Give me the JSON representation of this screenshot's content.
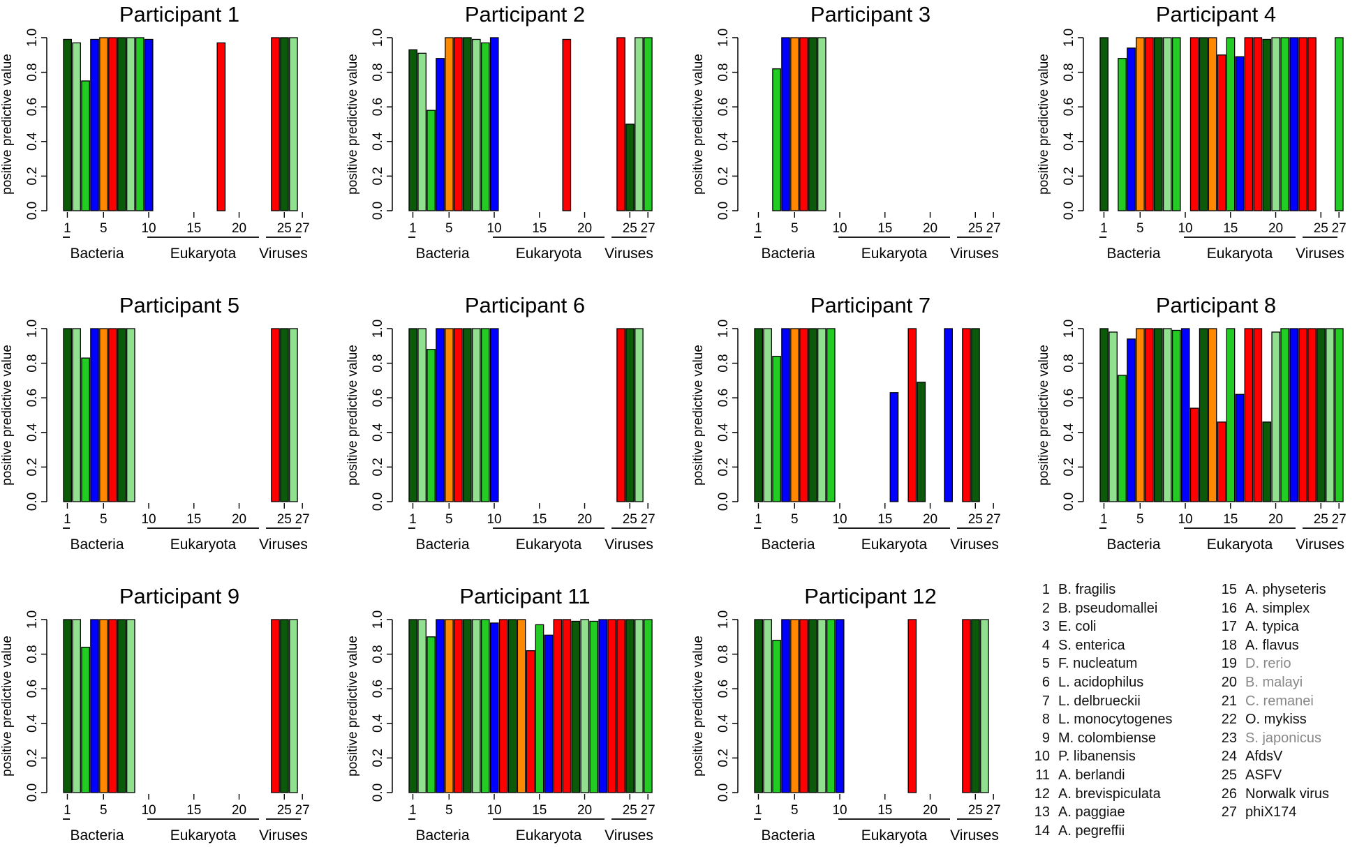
{
  "figure": {
    "y_axis_label": "positive predictive value",
    "y_ticks": [
      "0.0",
      "0.2",
      "0.4",
      "0.6",
      "0.8",
      "1.0"
    ],
    "x_ticks": [
      "1",
      "5",
      "10",
      "15",
      "20",
      "25",
      "27"
    ],
    "groups": [
      "Bacteria",
      "Eukaryota",
      "Viruses"
    ]
  },
  "colors": {
    "dark_green": "#0a5a0a",
    "light_green": "#90e090",
    "green": "#22cc22",
    "blue": "#0000ff",
    "orange": "#ff8800",
    "red": "#ff0000"
  },
  "species_colors": [
    "dark_green",
    "light_green",
    "green",
    "blue",
    "orange",
    "red",
    "dark_green",
    "light_green",
    "green",
    "blue",
    "red",
    "dark_green",
    "orange",
    "red",
    "green",
    "blue",
    "red",
    "red",
    "dark_green",
    "light_green",
    "green",
    "blue",
    "red",
    "red",
    "dark_green",
    "light_green",
    "green"
  ],
  "chart_data": [
    {
      "type": "bar",
      "title": "Participant 1",
      "categories": [
        1,
        2,
        3,
        4,
        5,
        6,
        7,
        8,
        9,
        10,
        11,
        12,
        13,
        14,
        15,
        16,
        17,
        18,
        19,
        20,
        21,
        22,
        23,
        24,
        25,
        26,
        27
      ],
      "ylim": [
        0,
        1
      ],
      "ylabel": "positive predictive value",
      "values": [
        0.99,
        0.97,
        0.75,
        0.99,
        1.0,
        1.0,
        1.0,
        1.0,
        1.0,
        0.99,
        null,
        null,
        null,
        null,
        null,
        null,
        null,
        0.97,
        null,
        null,
        null,
        null,
        null,
        1.0,
        1.0,
        1.0,
        null
      ]
    },
    {
      "type": "bar",
      "title": "Participant 2",
      "categories": [
        1,
        2,
        3,
        4,
        5,
        6,
        7,
        8,
        9,
        10,
        11,
        12,
        13,
        14,
        15,
        16,
        17,
        18,
        19,
        20,
        21,
        22,
        23,
        24,
        25,
        26,
        27
      ],
      "ylim": [
        0,
        1
      ],
      "ylabel": "positive predictive value",
      "values": [
        0.93,
        0.91,
        0.58,
        0.88,
        1.0,
        1.0,
        1.0,
        0.99,
        0.97,
        1.0,
        null,
        null,
        null,
        null,
        null,
        null,
        null,
        0.99,
        null,
        null,
        null,
        null,
        null,
        1.0,
        0.5,
        1.0,
        1.0
      ]
    },
    {
      "type": "bar",
      "title": "Participant 3",
      "categories": [
        1,
        2,
        3,
        4,
        5,
        6,
        7,
        8,
        9,
        10,
        11,
        12,
        13,
        14,
        15,
        16,
        17,
        18,
        19,
        20,
        21,
        22,
        23,
        24,
        25,
        26,
        27
      ],
      "ylim": [
        0,
        1
      ],
      "ylabel": "positive predictive value",
      "values": [
        null,
        null,
        0.82,
        1.0,
        1.0,
        1.0,
        1.0,
        1.0,
        null,
        null,
        null,
        null,
        null,
        null,
        null,
        null,
        null,
        null,
        null,
        null,
        null,
        null,
        null,
        null,
        null,
        null,
        null
      ]
    },
    {
      "type": "bar",
      "title": "Participant 4",
      "categories": [
        1,
        2,
        3,
        4,
        5,
        6,
        7,
        8,
        9,
        10,
        11,
        12,
        13,
        14,
        15,
        16,
        17,
        18,
        19,
        20,
        21,
        22,
        23,
        24,
        25,
        26,
        27
      ],
      "ylim": [
        0,
        1
      ],
      "ylabel": "positive predictive value",
      "values": [
        1.0,
        null,
        0.88,
        0.94,
        1.0,
        1.0,
        1.0,
        1.0,
        1.0,
        null,
        1.0,
        1.0,
        1.0,
        0.9,
        1.0,
        0.89,
        1.0,
        1.0,
        0.99,
        1.0,
        1.0,
        1.0,
        1.0,
        1.0,
        null,
        null,
        1.0
      ]
    },
    {
      "type": "bar",
      "title": "Participant 5",
      "categories": [
        1,
        2,
        3,
        4,
        5,
        6,
        7,
        8,
        9,
        10,
        11,
        12,
        13,
        14,
        15,
        16,
        17,
        18,
        19,
        20,
        21,
        22,
        23,
        24,
        25,
        26,
        27
      ],
      "ylim": [
        0,
        1
      ],
      "ylabel": "positive predictive value",
      "values": [
        1.0,
        1.0,
        0.83,
        1.0,
        1.0,
        1.0,
        1.0,
        1.0,
        null,
        null,
        null,
        null,
        null,
        null,
        null,
        null,
        null,
        null,
        null,
        null,
        null,
        null,
        null,
        1.0,
        1.0,
        1.0,
        null
      ]
    },
    {
      "type": "bar",
      "title": "Participant 6",
      "categories": [
        1,
        2,
        3,
        4,
        5,
        6,
        7,
        8,
        9,
        10,
        11,
        12,
        13,
        14,
        15,
        16,
        17,
        18,
        19,
        20,
        21,
        22,
        23,
        24,
        25,
        26,
        27
      ],
      "ylim": [
        0,
        1
      ],
      "ylabel": "positive predictive value",
      "values": [
        1.0,
        1.0,
        0.88,
        1.0,
        1.0,
        1.0,
        1.0,
        1.0,
        1.0,
        1.0,
        null,
        null,
        null,
        null,
        null,
        null,
        null,
        null,
        null,
        null,
        null,
        null,
        null,
        1.0,
        1.0,
        1.0,
        null
      ]
    },
    {
      "type": "bar",
      "title": "Participant 7",
      "categories": [
        1,
        2,
        3,
        4,
        5,
        6,
        7,
        8,
        9,
        10,
        11,
        12,
        13,
        14,
        15,
        16,
        17,
        18,
        19,
        20,
        21,
        22,
        23,
        24,
        25,
        26,
        27
      ],
      "ylim": [
        0,
        1
      ],
      "ylabel": "positive predictive value",
      "values": [
        1.0,
        1.0,
        0.84,
        1.0,
        1.0,
        1.0,
        1.0,
        1.0,
        1.0,
        null,
        null,
        null,
        null,
        null,
        null,
        0.63,
        null,
        1.0,
        0.69,
        null,
        null,
        1.0,
        null,
        1.0,
        1.0,
        null,
        null
      ]
    },
    {
      "type": "bar",
      "title": "Participant 8",
      "categories": [
        1,
        2,
        3,
        4,
        5,
        6,
        7,
        8,
        9,
        10,
        11,
        12,
        13,
        14,
        15,
        16,
        17,
        18,
        19,
        20,
        21,
        22,
        23,
        24,
        25,
        26,
        27
      ],
      "ylim": [
        0,
        1
      ],
      "ylabel": "positive predictive value",
      "values": [
        1.0,
        0.98,
        0.73,
        0.94,
        1.0,
        1.0,
        1.0,
        1.0,
        0.99,
        1.0,
        0.54,
        1.0,
        1.0,
        0.46,
        1.0,
        0.62,
        1.0,
        1.0,
        0.46,
        0.98,
        1.0,
        1.0,
        1.0,
        1.0,
        1.0,
        1.0,
        1.0
      ]
    },
    {
      "type": "bar",
      "title": "Participant 9",
      "categories": [
        1,
        2,
        3,
        4,
        5,
        6,
        7,
        8,
        9,
        10,
        11,
        12,
        13,
        14,
        15,
        16,
        17,
        18,
        19,
        20,
        21,
        22,
        23,
        24,
        25,
        26,
        27
      ],
      "ylim": [
        0,
        1
      ],
      "ylabel": "positive predictive value",
      "values": [
        1.0,
        1.0,
        0.84,
        1.0,
        1.0,
        1.0,
        1.0,
        1.0,
        null,
        null,
        null,
        null,
        null,
        null,
        null,
        null,
        null,
        null,
        null,
        null,
        null,
        null,
        null,
        1.0,
        1.0,
        1.0,
        null
      ]
    },
    {
      "type": "bar",
      "title": "Participant 11",
      "categories": [
        1,
        2,
        3,
        4,
        5,
        6,
        7,
        8,
        9,
        10,
        11,
        12,
        13,
        14,
        15,
        16,
        17,
        18,
        19,
        20,
        21,
        22,
        23,
        24,
        25,
        26,
        27
      ],
      "ylim": [
        0,
        1
      ],
      "ylabel": "positive predictive value",
      "values": [
        1.0,
        1.0,
        0.9,
        1.0,
        1.0,
        1.0,
        1.0,
        1.0,
        1.0,
        0.98,
        1.0,
        1.0,
        1.0,
        0.82,
        0.97,
        0.91,
        1.0,
        1.0,
        0.99,
        1.0,
        0.99,
        1.0,
        1.0,
        1.0,
        1.0,
        1.0,
        1.0
      ]
    },
    {
      "type": "bar",
      "title": "Participant 12",
      "categories": [
        1,
        2,
        3,
        4,
        5,
        6,
        7,
        8,
        9,
        10,
        11,
        12,
        13,
        14,
        15,
        16,
        17,
        18,
        19,
        20,
        21,
        22,
        23,
        24,
        25,
        26,
        27
      ],
      "ylim": [
        0,
        1
      ],
      "ylabel": "positive predictive value",
      "values": [
        1.0,
        1.0,
        0.88,
        1.0,
        1.0,
        1.0,
        1.0,
        1.0,
        1.0,
        1.0,
        null,
        null,
        null,
        null,
        null,
        null,
        null,
        1.0,
        null,
        null,
        null,
        null,
        null,
        1.0,
        1.0,
        1.0,
        null
      ]
    }
  ],
  "legend": [
    {
      "num": "1",
      "name": "B. fragilis",
      "grey": false
    },
    {
      "num": "2",
      "name": "B. pseudomallei",
      "grey": false
    },
    {
      "num": "3",
      "name": "E. coli",
      "grey": false
    },
    {
      "num": "4",
      "name": "S. enterica",
      "grey": false
    },
    {
      "num": "5",
      "name": "F. nucleatum",
      "grey": false
    },
    {
      "num": "6",
      "name": "L. acidophilus",
      "grey": false
    },
    {
      "num": "7",
      "name": "L. delbrueckii",
      "grey": false
    },
    {
      "num": "8",
      "name": "L. monocytogenes",
      "grey": false
    },
    {
      "num": "9",
      "name": "M. colombiense",
      "grey": false
    },
    {
      "num": "10",
      "name": "P. libanensis",
      "grey": false
    },
    {
      "num": "11",
      "name": "A. berlandi",
      "grey": false
    },
    {
      "num": "12",
      "name": "A. brevispiculata",
      "grey": false
    },
    {
      "num": "13",
      "name": "A. paggiae",
      "grey": false
    },
    {
      "num": "14",
      "name": "A. pegreffii",
      "grey": false
    },
    {
      "num": "15",
      "name": "A. physeteris",
      "grey": false
    },
    {
      "num": "16",
      "name": "A. simplex",
      "grey": false
    },
    {
      "num": "17",
      "name": "A. typica",
      "grey": false
    },
    {
      "num": "18",
      "name": "A. flavus",
      "grey": false
    },
    {
      "num": "19",
      "name": "D. rerio",
      "grey": true
    },
    {
      "num": "20",
      "name": "B. malayi",
      "grey": true
    },
    {
      "num": "21",
      "name": "C. remanei",
      "grey": true
    },
    {
      "num": "22",
      "name": "O. mykiss",
      "grey": false
    },
    {
      "num": "23",
      "name": "S. japonicus",
      "grey": true
    },
    {
      "num": "24",
      "name": "AfdsV",
      "grey": false
    },
    {
      "num": "25",
      "name": "ASFV",
      "grey": false
    },
    {
      "num": "26",
      "name": "Norwalk virus",
      "grey": false
    },
    {
      "num": "27",
      "name": "phiX174",
      "grey": false
    }
  ]
}
